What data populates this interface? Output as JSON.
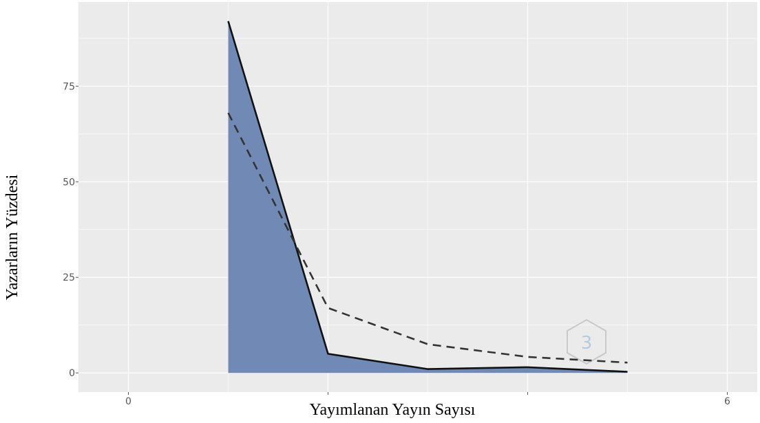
{
  "chart_data": {
    "type": "area",
    "title": "",
    "xlabel": "Yayımlanan Yayın Sayısı",
    "ylabel": "Yazarların Yüzdesi",
    "xlim": [
      -0.5,
      6.3
    ],
    "ylim": [
      -5,
      97
    ],
    "x_ticks": [
      {
        "value": 0,
        "label": "0"
      },
      {
        "value": 2,
        "label": ""
      },
      {
        "value": 4,
        "label": ""
      },
      {
        "value": 6,
        "label": "6"
      }
    ],
    "y_ticks": [
      {
        "value": 0,
        "label": "0"
      },
      {
        "value": 25,
        "label": "25"
      },
      {
        "value": 50,
        "label": "50"
      },
      {
        "value": 75,
        "label": "75"
      }
    ],
    "grid": true,
    "series": [
      {
        "style": "area-solid",
        "color": "#7189b5",
        "line_color": "#111111",
        "x": [
          1,
          2,
          3,
          4,
          5
        ],
        "y": [
          92,
          5,
          1,
          1.5,
          0.3
        ]
      },
      {
        "style": "dashed",
        "line_color": "#333333",
        "x": [
          1,
          2,
          3,
          4,
          5
        ],
        "y": [
          68,
          17,
          7.5,
          4.2,
          2.7
        ]
      }
    ],
    "watermark": {
      "icon": "hexagon-logo-icon"
    }
  },
  "colors": {
    "panel_background": "#ebebeb",
    "grid_line": "#ffffff",
    "tick_text": "#555555"
  }
}
